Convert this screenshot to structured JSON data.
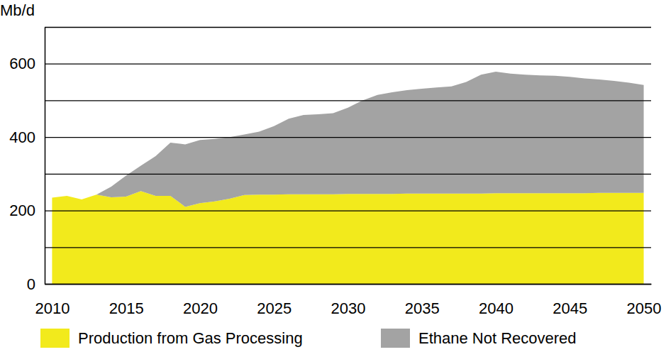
{
  "chart_data": {
    "type": "area",
    "stacked": true,
    "y_label": "Mb/d",
    "x": [
      2010,
      2011,
      2012,
      2013,
      2014,
      2015,
      2016,
      2017,
      2018,
      2019,
      2020,
      2021,
      2022,
      2023,
      2024,
      2025,
      2026,
      2027,
      2028,
      2029,
      2030,
      2031,
      2032,
      2033,
      2034,
      2035,
      2036,
      2037,
      2038,
      2039,
      2040,
      2041,
      2042,
      2043,
      2044,
      2045,
      2046,
      2047,
      2048,
      2049,
      2050
    ],
    "series": [
      {
        "name": "Production from Gas Processing",
        "color": "#f2ea1c",
        "values": [
          235,
          240,
          230,
          243,
          236,
          238,
          253,
          240,
          240,
          210,
          220,
          225,
          232,
          242,
          243,
          243,
          244,
          244,
          244,
          244,
          245,
          245,
          245,
          245,
          246,
          246,
          246,
          246,
          246,
          246,
          247,
          247,
          247,
          247,
          247,
          247,
          247,
          248,
          248,
          248,
          248
        ]
      },
      {
        "name": "Ethane Not Recovered",
        "color": "#a3a3a3",
        "values": [
          0,
          0,
          0,
          0,
          29,
          57,
          69,
          108,
          145,
          170,
          172,
          170,
          168,
          165,
          172,
          187,
          206,
          216,
          218,
          221,
          235,
          255,
          270,
          277,
          282,
          286,
          289,
          292,
          304,
          324,
          331,
          326,
          323,
          321,
          320,
          317,
          313,
          309,
          305,
          300,
          294
        ]
      }
    ],
    "xlim": [
      2009.5,
      2050.5
    ],
    "xticks": [
      2010,
      2015,
      2020,
      2025,
      2030,
      2035,
      2040,
      2045,
      2050
    ],
    "ylim": [
      0,
      700
    ],
    "yticks": [
      0,
      {
        "value": 100,
        "label": null
      },
      200,
      {
        "value": 300,
        "label": null
      },
      400,
      {
        "value": 500,
        "label": null
      },
      600,
      {
        "value": 700,
        "label": null
      }
    ],
    "grid": true,
    "legend": "bottom"
  }
}
